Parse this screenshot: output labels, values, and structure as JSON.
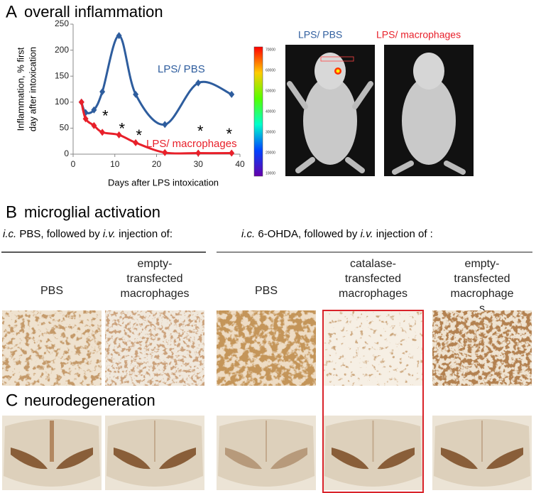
{
  "panel_a": {
    "label": "A",
    "title": "overall inflammation",
    "chart_data": {
      "type": "line",
      "smooth": true,
      "ylabel": [
        "Inflammation, % first",
        "day after intoxication"
      ],
      "xlabel": "Days after LPS intoxication",
      "x": [
        2,
        3,
        5,
        7,
        11,
        15,
        22,
        30,
        38
      ],
      "series": [
        {
          "name": "LPS/  PBS",
          "color": "#2e5d9e",
          "values": [
            100,
            80,
            85,
            120,
            228,
            115,
            57,
            137,
            115
          ]
        },
        {
          "name": "LPS/ macrophages",
          "color": "#e8202a",
          "values": [
            100,
            68,
            55,
            42,
            37,
            22,
            3,
            2,
            2
          ]
        }
      ],
      "annotations": [
        {
          "text": "*",
          "x": 7.7,
          "y": 80
        },
        {
          "text": "*",
          "x": 11.7,
          "y": 55
        },
        {
          "text": "*",
          "x": 15.8,
          "y": 42
        },
        {
          "text": "*",
          "x": 30.5,
          "y": 50
        },
        {
          "text": "*",
          "x": 37.4,
          "y": 45
        }
      ],
      "xlim": [
        0,
        40
      ],
      "xticks": [
        0,
        10,
        20,
        30,
        40
      ],
      "ylim": [
        0,
        250
      ],
      "yticks": [
        0,
        50,
        100,
        150,
        200,
        250
      ]
    },
    "images": {
      "labels": [
        "LPS/ PBS",
        "LPS/ macrophages"
      ],
      "colorbar_ticks": [
        70000,
        60000,
        50000,
        40000,
        30000,
        20000,
        10000
      ]
    }
  },
  "panel_b": {
    "label": "B",
    "title": "microglial activation",
    "groups": [
      [
        "i.c.",
        " PBS, followed by ",
        "i.v.",
        " injection of:"
      ],
      [
        "i.c.",
        " 6-OHDA, followed by ",
        "i.v.",
        " injection of :"
      ]
    ],
    "columns": [
      [
        "PBS"
      ],
      [
        "empty-",
        "transfected",
        "macrophages"
      ],
      [
        "PBS"
      ],
      [
        "catalase-",
        "transfected",
        "macrophages"
      ],
      [
        "empty-",
        "transfected",
        "macrophage",
        "s"
      ]
    ]
  },
  "panel_c": {
    "label": "C",
    "title": "neurodegeneration"
  }
}
